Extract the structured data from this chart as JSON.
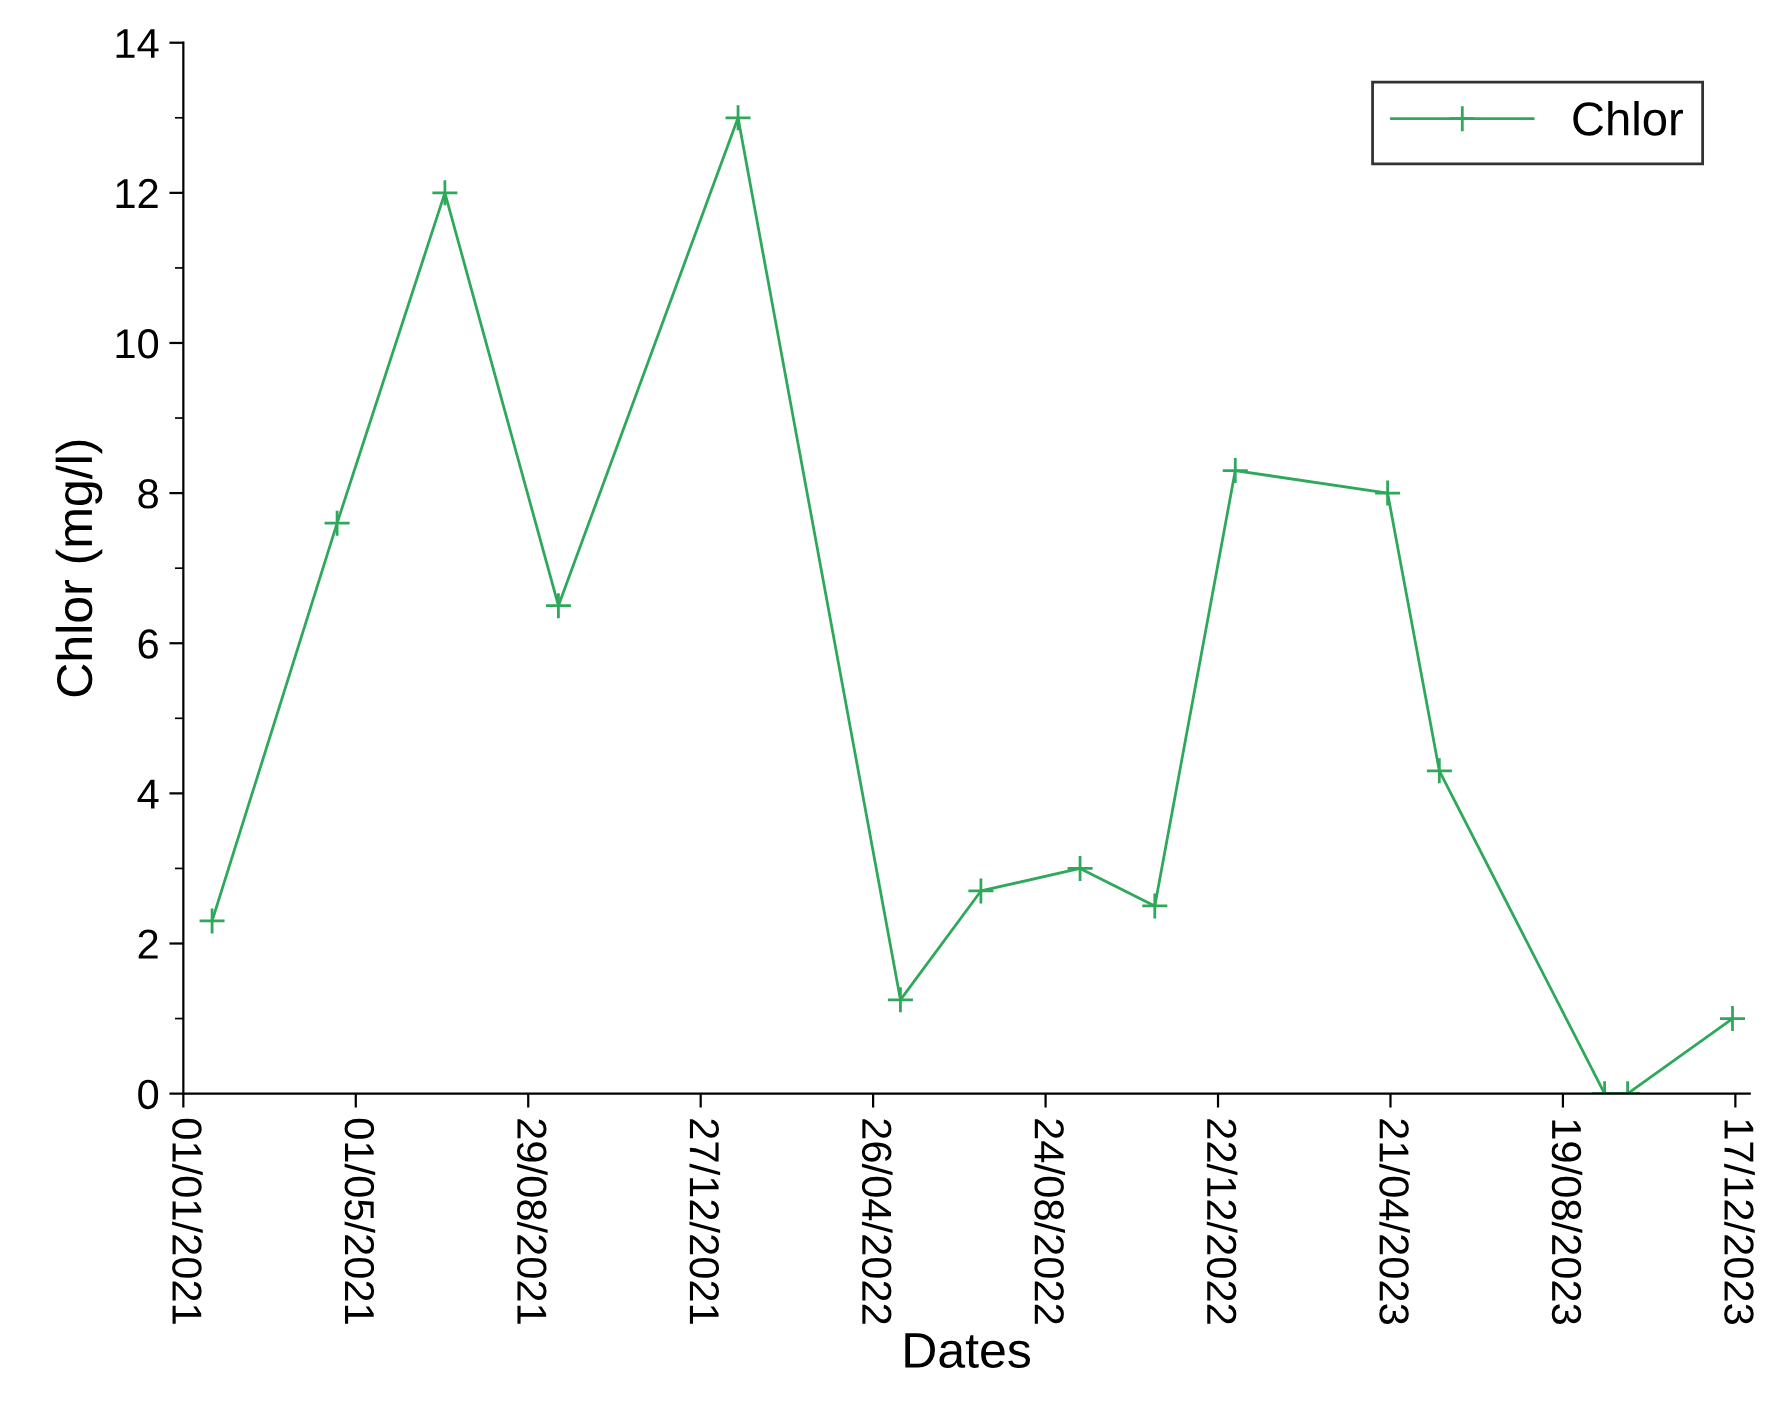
{
  "chart_data": {
    "type": "line",
    "xlabel": "Dates",
    "ylabel": "Chlor (mg/l)",
    "x": [
      "2021-01-21",
      "2021-04-18",
      "2021-07-02",
      "2021-09-19",
      "2022-01-22",
      "2022-05-15",
      "2022-07-10",
      "2022-09-17",
      "2022-11-08",
      "2023-01-03",
      "2023-04-19",
      "2023-05-25",
      "2023-09-17",
      "2023-10-03",
      "2023-12-15"
    ],
    "series": [
      {
        "name": "Chlor",
        "color": "#2ea85a",
        "values": [
          2.3,
          7.6,
          12,
          6.5,
          13,
          1.25,
          2.7,
          3.0,
          2.5,
          8.3,
          8.0,
          4.3,
          0,
          0,
          1.0
        ]
      }
    ],
    "xlim": [
      "2021-01-01",
      "2023-12-27"
    ],
    "xticks": [
      {
        "value": "2021-01-01",
        "label": "01/01/2021"
      },
      {
        "value": "2021-05-01",
        "label": "01/05/2021"
      },
      {
        "value": "2021-08-29",
        "label": "29/08/2021"
      },
      {
        "value": "2021-12-27",
        "label": "27/12/2021"
      },
      {
        "value": "2022-04-26",
        "label": "26/04/2022"
      },
      {
        "value": "2022-08-24",
        "label": "24/08/2022"
      },
      {
        "value": "2022-12-22",
        "label": "22/12/2022"
      },
      {
        "value": "2023-04-21",
        "label": "21/04/2023"
      },
      {
        "value": "2023-08-19",
        "label": "19/08/2023"
      },
      {
        "value": "2023-12-17",
        "label": "17/12/2023"
      }
    ],
    "ylim": [
      0,
      14
    ],
    "yticks": [
      0,
      2,
      4,
      6,
      8,
      10,
      12,
      14
    ],
    "marker": "cross",
    "line_style": "solid",
    "legend": "top right",
    "grid": false
  }
}
